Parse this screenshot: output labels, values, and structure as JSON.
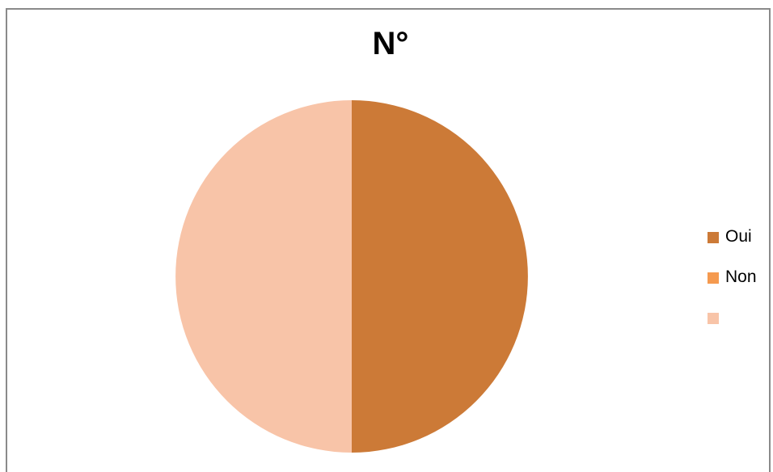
{
  "chart_data": {
    "type": "pie",
    "title": "N°",
    "categories": [
      "Oui",
      "Non",
      ""
    ],
    "values": [
      50,
      0,
      50
    ],
    "colors": [
      "#cc7a37",
      "#f59a4f",
      "#f8c4a8"
    ],
    "legend_position": "right"
  }
}
